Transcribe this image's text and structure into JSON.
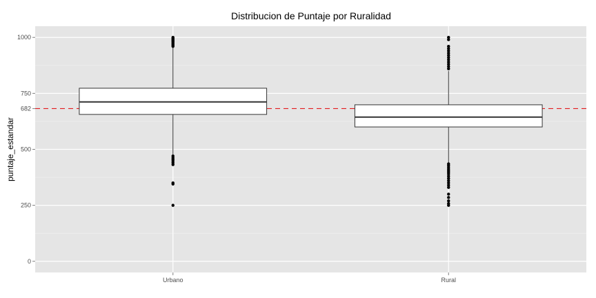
{
  "chart_data": {
    "type": "boxplot",
    "title": "Distribucion de Puntaje por Ruralidad",
    "xlabel": "",
    "ylabel": "puntaje_estandar",
    "ylim": [
      -50,
      1050
    ],
    "y_ticks": [
      0,
      250,
      500,
      750,
      1000
    ],
    "y_minor_ticks": [
      125,
      375,
      625,
      875
    ],
    "reference_line": {
      "value": 682,
      "label": "682",
      "style": "dashed",
      "color": "#e41a1c"
    },
    "categories": [
      "Urbano",
      "Rural"
    ],
    "series": [
      {
        "category": "Urbano",
        "q1": 656,
        "median": 712,
        "q3": 773,
        "whisker_low": 475,
        "whisker_high": 955,
        "outliers": [
          1000,
          996,
          992,
          988,
          984,
          980,
          975,
          970,
          965,
          960,
          470,
          462,
          455,
          448,
          440,
          432,
          350,
          345,
          250
        ]
      },
      {
        "category": "Rural",
        "q1": 600,
        "median": 644,
        "q3": 699,
        "whisker_low": 440,
        "whisker_high": 850,
        "outliers": [
          1000,
          990,
          960,
          950,
          940,
          930,
          920,
          910,
          900,
          890,
          880,
          870,
          860,
          435,
          428,
          420,
          412,
          405,
          398,
          390,
          380,
          370,
          360,
          350,
          340,
          330,
          300,
          285,
          270,
          258,
          250
        ]
      }
    ],
    "grid": true,
    "legend": "none",
    "colors": {
      "panel": "#e5e5e5",
      "grid_major": "#ffffff",
      "grid_minor": "#f2f2f2",
      "box_fill": "#ffffff",
      "box_stroke": "#333333",
      "outlier": "#000000",
      "reference": "#e41a1c"
    }
  }
}
